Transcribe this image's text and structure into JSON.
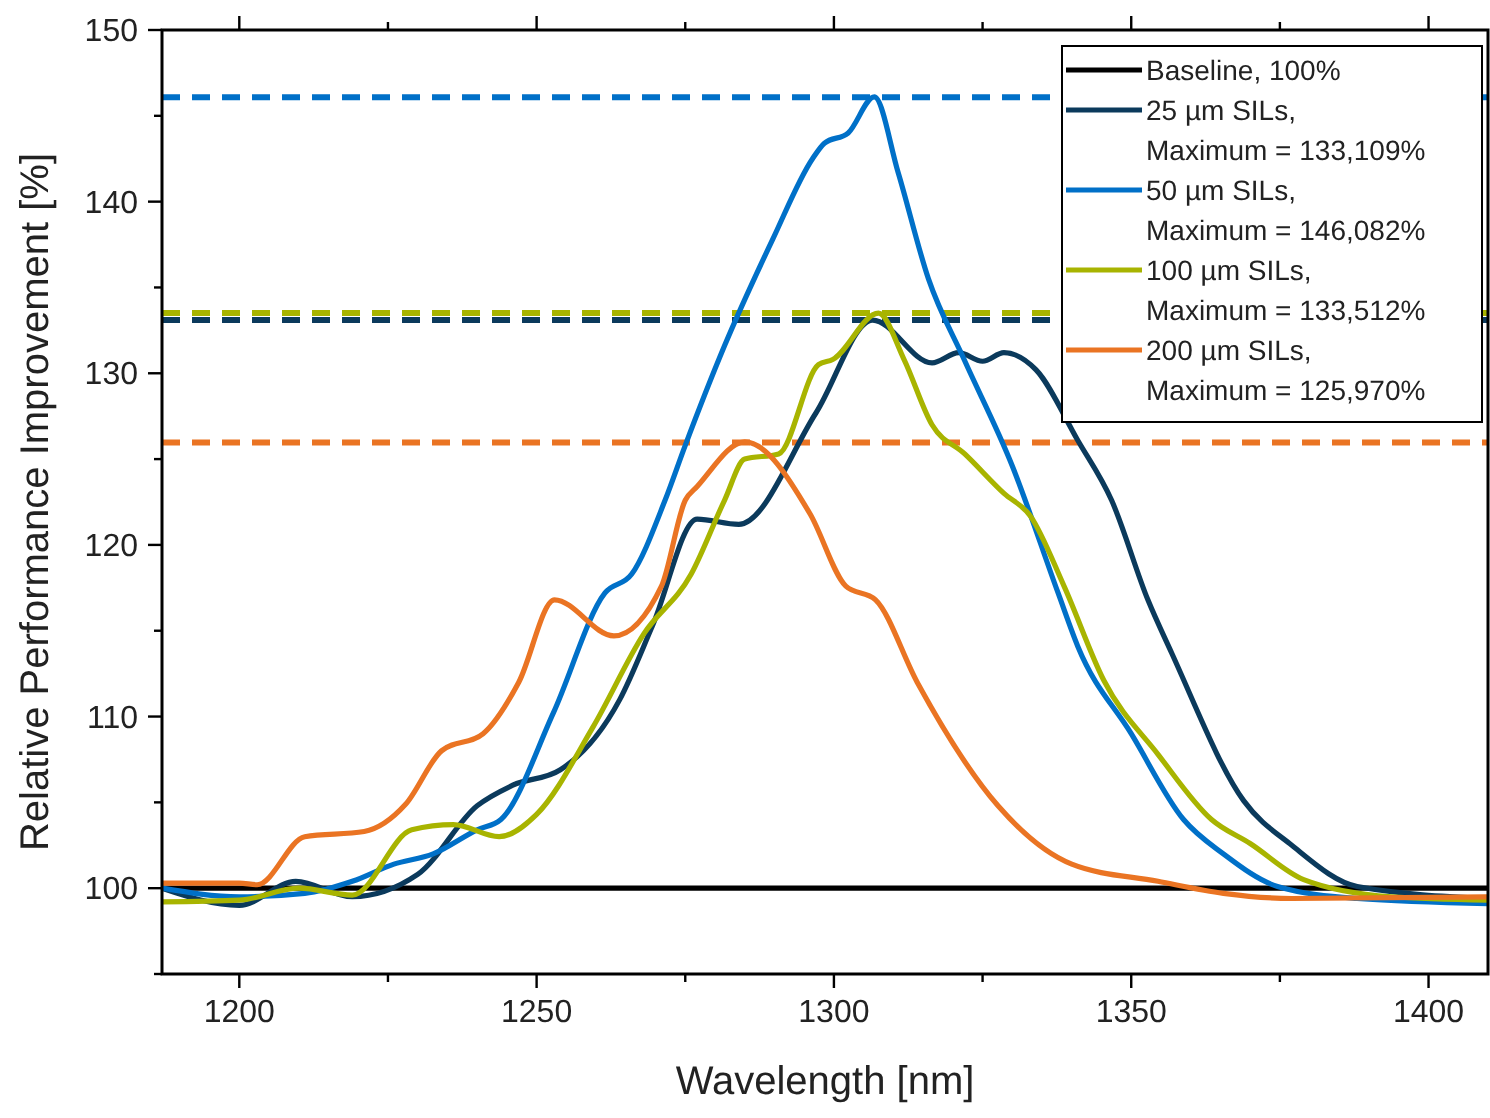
{
  "chart_data": {
    "type": "line",
    "xlabel": "Wavelength [nm]",
    "ylabel": "Relative Performance Improvement [%]",
    "xlim": [
      1187,
      1410
    ],
    "xticks": [
      1200,
      {
        "value": 1225,
        "label": null
      },
      1250,
      {
        "value": 1275,
        "label": null
      },
      1300,
      {
        "value": 1325,
        "label": null
      },
      1350,
      {
        "value": 1375,
        "label": null
      },
      1400
    ],
    "ylim": [
      95,
      150
    ],
    "yticks": [
      {
        "value": 95,
        "label": null
      },
      100,
      {
        "value": 105,
        "label": null
      },
      110,
      {
        "value": 115,
        "label": null
      },
      120,
      {
        "value": 125,
        "label": null
      },
      130,
      {
        "value": 135,
        "label": null
      },
      140,
      {
        "value": 145,
        "label": null
      },
      150
    ],
    "grid": false,
    "legend": "top right",
    "line_style": "solid",
    "marker": "none",
    "series": [
      {
        "name": "Baseline, 100%",
        "color": "#000000",
        "x": [
          1187,
          1410
        ],
        "values": [
          100,
          100
        ]
      },
      {
        "name": "25 µm SILs,\nMaximum = 133,109%",
        "color": "#0b3a5c",
        "x": [
          1187,
          1200,
          1209.5,
          1219,
          1230,
          1240,
          1246,
          1254,
          1264,
          1269.5,
          1277,
          1284,
          1297,
          1306.5,
          1316.5,
          1321,
          1325,
          1328.6,
          1334,
          1341,
          1346.7,
          1352.8,
          1356.8,
          1368.9,
          1377,
          1388,
          1410
        ],
        "values": [
          100,
          99,
          100.4,
          99.5,
          100.8,
          104.8,
          106,
          106.9,
          111,
          115.3,
          121.5,
          121.2,
          127.7,
          133.1,
          130.6,
          131.2,
          130.7,
          131.2,
          130.2,
          126.1,
          122.6,
          116.8,
          113.7,
          105.1,
          102.5,
          100.1,
          99.4
        ]
      },
      {
        "name": "50 µm SILs,\nMaximum = 146,082%",
        "color": "#0070c8",
        "x": [
          1187,
          1200,
          1211,
          1219,
          1226,
          1232.6,
          1240,
          1244,
          1252.8,
          1261.5,
          1266,
          1271.6,
          1275,
          1281.6,
          1289.7,
          1296.4,
          1298.4,
          1302.4,
          1306.8,
          1310.8,
          1315.9,
          1321.9,
          1330,
          1337.7,
          1341,
          1350,
          1358.8,
          1365.5,
          1374.6,
          1388,
          1410
        ],
        "values": [
          100,
          99.5,
          99.7,
          100.4,
          101.4,
          102,
          103.4,
          104,
          110.2,
          117.2,
          118.3,
          122.6,
          125.8,
          131.6,
          137.8,
          142.5,
          143.4,
          144,
          146.1,
          141.7,
          135.5,
          130.8,
          124.6,
          117.2,
          114.1,
          109,
          104,
          102,
          100.1,
          99.4,
          99.1
        ]
      },
      {
        "name": "100 µm SILs,\nMaximum = 133,512%",
        "color": "#a8b400",
        "x": [
          1187,
          1200,
          1210,
          1219,
          1229,
          1236,
          1243.7,
          1250,
          1259.5,
          1268,
          1276,
          1281.6,
          1285,
          1290.7,
          1297.4,
          1299.8,
          1307.5,
          1311.8,
          1316.5,
          1322,
          1328.6,
          1333,
          1338.7,
          1345.4,
          1354.5,
          1363.5,
          1370,
          1379,
          1393.7,
          1410
        ],
        "values": [
          99.2,
          99.3,
          100,
          99.6,
          103.4,
          103.7,
          103,
          104.3,
          109.4,
          114.8,
          118.3,
          122.6,
          125,
          125.3,
          130.5,
          130.8,
          133.5,
          130.8,
          127,
          125.3,
          123,
          121.7,
          117.6,
          112.1,
          107.8,
          104,
          102.6,
          100.5,
          99.5,
          99.3
        ]
      },
      {
        "name": "200 µm SILs,\nMaximum = 125,970%",
        "color": "#ea7423",
        "x": [
          1187,
          1200,
          1203,
          1211,
          1221,
          1228,
          1234,
          1241,
          1247,
          1253,
          1263,
          1271,
          1275,
          1277,
          1285,
          1296,
          1302,
          1307,
          1314,
          1327.6,
          1340,
          1354.5,
          1365.5,
          1377,
          1410
        ],
        "values": [
          100.3,
          100.3,
          100.2,
          103,
          103.3,
          104.9,
          108,
          109,
          112,
          116.8,
          114.7,
          117.6,
          122.6,
          123.4,
          126,
          121.8,
          117.6,
          116.8,
          112,
          104.8,
          101.4,
          100.4,
          99.7,
          99.4,
          99.5
        ]
      }
    ],
    "ref_lines": [
      {
        "axis": "y",
        "value": 133.109,
        "color": "#0b3a5c",
        "line_style": "dashed"
      },
      {
        "axis": "y",
        "value": 146.082,
        "color": "#0070c8",
        "line_style": "dashed"
      },
      {
        "axis": "y",
        "value": 133.512,
        "color": "#a8b400",
        "line_style": "dashed"
      },
      {
        "axis": "y",
        "value": 125.97,
        "color": "#ea7423",
        "line_style": "dashed"
      }
    ]
  }
}
